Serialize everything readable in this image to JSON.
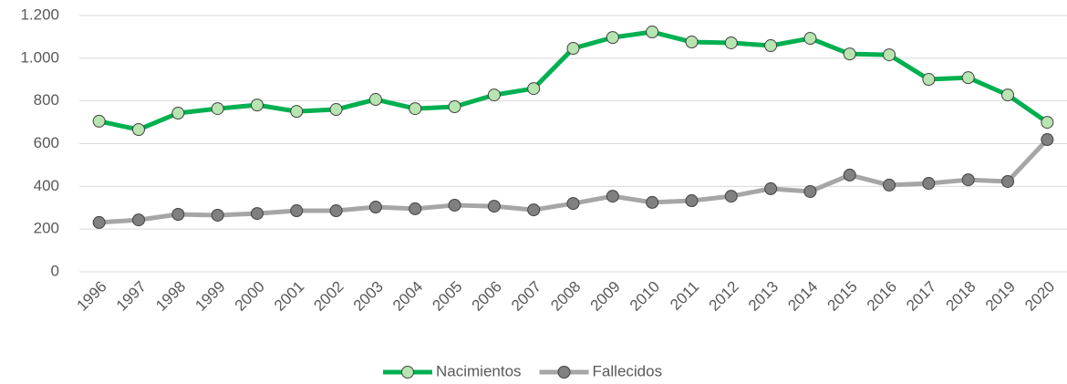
{
  "chart_data": {
    "type": "line",
    "categories": [
      "1996",
      "1997",
      "1998",
      "1999",
      "2000",
      "2001",
      "2002",
      "2003",
      "2004",
      "2005",
      "2006",
      "2007",
      "2008",
      "2009",
      "2010",
      "2011",
      "2012",
      "2013",
      "2014",
      "2015",
      "2016",
      "2017",
      "2018",
      "2019",
      "2020"
    ],
    "series": [
      {
        "name": "Nacimientos",
        "color": "#00b050",
        "marker_color": "#b7e4b0",
        "values": [
          705,
          666,
          743,
          764,
          781,
          751,
          760,
          807,
          764,
          773,
          828,
          858,
          1046,
          1097,
          1123,
          1076,
          1072,
          1059,
          1093,
          1020,
          1016,
          901,
          909,
          828,
          700
        ]
      },
      {
        "name": "Fallecidos",
        "color": "#a6a6a6",
        "marker_color": "#808080",
        "values": [
          231,
          243,
          269,
          265,
          273,
          286,
          286,
          303,
          295,
          312,
          307,
          290,
          320,
          354,
          325,
          333,
          354,
          389,
          376,
          453,
          406,
          414,
          431,
          423,
          619
        ]
      }
    ],
    "ylim": [
      0,
      1200
    ],
    "yticks": [
      0,
      200,
      400,
      600,
      800,
      {
        "value": 1000,
        "label": "1.000"
      },
      {
        "value": 1200,
        "label": "1.200"
      }
    ],
    "grid": true,
    "legend": "bottom"
  }
}
